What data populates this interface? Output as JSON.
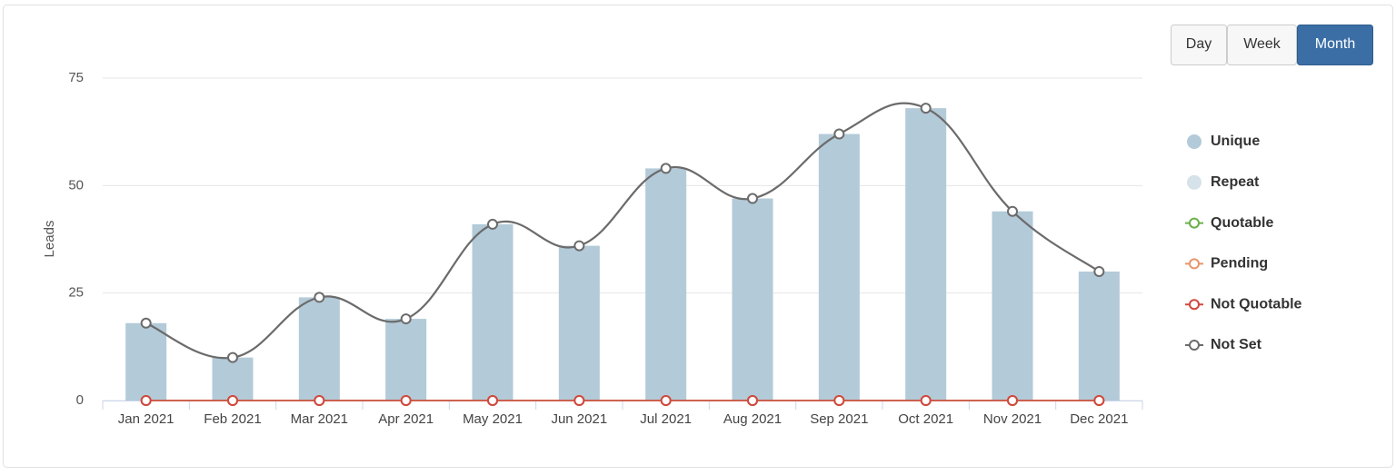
{
  "chart_data": {
    "type": "bar",
    "y_label": "Leads",
    "categories": [
      "Jan 2021",
      "Feb 2021",
      "Mar 2021",
      "Apr 2021",
      "May 2021",
      "Jun 2021",
      "Jul 2021",
      "Aug 2021",
      "Sep 2021",
      "Oct 2021",
      "Nov 2021",
      "Dec 2021"
    ],
    "series": [
      {
        "name": "Unique",
        "type": "bar",
        "color": "#b3cad8",
        "values": [
          18,
          10,
          24,
          19,
          41,
          36,
          54,
          47,
          62,
          68,
          44,
          30
        ]
      },
      {
        "name": "Repeat",
        "type": "bar",
        "color": "#d6e2ea",
        "values": [
          0,
          0,
          0,
          0,
          0,
          0,
          0,
          0,
          0,
          0,
          0,
          0
        ]
      },
      {
        "name": "Quotable",
        "type": "line",
        "color": "#6ab04c",
        "values": [
          0,
          0,
          0,
          0,
          0,
          0,
          0,
          0,
          0,
          0,
          0,
          0
        ]
      },
      {
        "name": "Pending",
        "type": "line",
        "color": "#e8956b",
        "values": [
          0,
          0,
          0,
          0,
          0,
          0,
          0,
          0,
          0,
          0,
          0,
          0
        ]
      },
      {
        "name": "Not Quotable",
        "type": "line",
        "color": "#d0483f",
        "values": [
          0,
          0,
          0,
          0,
          0,
          0,
          0,
          0,
          0,
          0,
          0,
          0
        ]
      },
      {
        "name": "Not Set",
        "type": "spline",
        "color": "#6b6b6b",
        "values": [
          18,
          10,
          24,
          19,
          41,
          36,
          54,
          47,
          62,
          68,
          44,
          30
        ]
      }
    ],
    "ylim": [
      0,
      75
    ],
    "yticks": [
      0,
      25,
      50,
      75
    ],
    "grid": true,
    "legend": "right"
  },
  "period_buttons": [
    "Day",
    "Week",
    "Month"
  ],
  "selected_period": "Month"
}
